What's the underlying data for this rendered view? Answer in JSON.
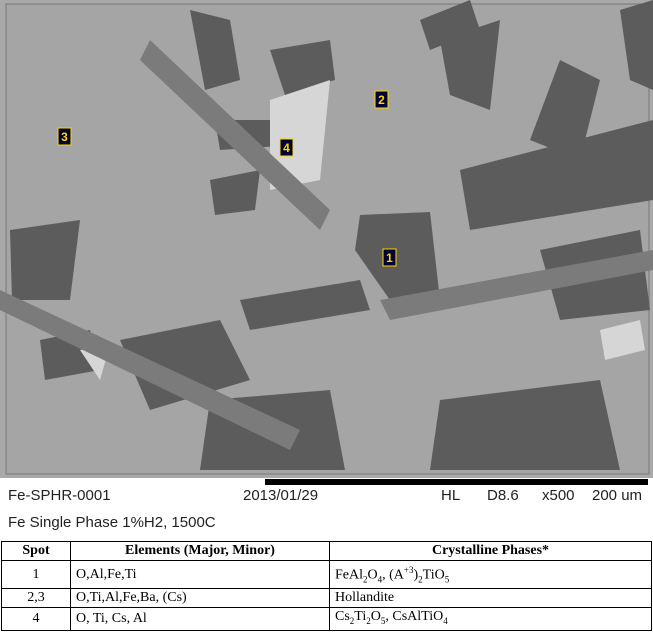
{
  "image": {
    "spot_labels": [
      "2",
      "3",
      "4",
      "1"
    ],
    "info": {
      "sample": "Fe-SPHR-0001",
      "date": "2013/01/29",
      "mode": "HL",
      "distance": "D8.6",
      "magnification": "x500",
      "scale": "200 um"
    },
    "caption": "Fe Single Phase 1%H2, 1500C"
  },
  "table": {
    "header": [
      "Spot",
      "Elements (Major, Minor)",
      "Crystalline Phases*"
    ],
    "rows": [
      {
        "spot": "1",
        "elements": "O,Al,Fe,Ti",
        "phases": [
          {
            "text": "FeAl"
          },
          {
            "sub": "2"
          },
          {
            "text": "O"
          },
          {
            "sub": "4"
          },
          {
            "text": ", (A"
          },
          {
            "sup": "+3"
          },
          {
            "text": ")"
          },
          {
            "sub": "2"
          },
          {
            "text": "TiO"
          },
          {
            "sub": "5"
          }
        ]
      },
      {
        "spot": "2,3",
        "elements": "O,Ti,Al,Fe,Ba, (Cs)",
        "phases": [
          {
            "text": "Hollandite"
          }
        ]
      },
      {
        "spot": "4",
        "elements": "O, Ti, Cs, Al",
        "phases": [
          {
            "text": "Cs"
          },
          {
            "sub": "2"
          },
          {
            "text": "Ti"
          },
          {
            "sub": "2"
          },
          {
            "text": "O"
          },
          {
            "sub": "5"
          },
          {
            "text": ", CsAlTiO"
          },
          {
            "sub": "4"
          }
        ]
      }
    ]
  }
}
